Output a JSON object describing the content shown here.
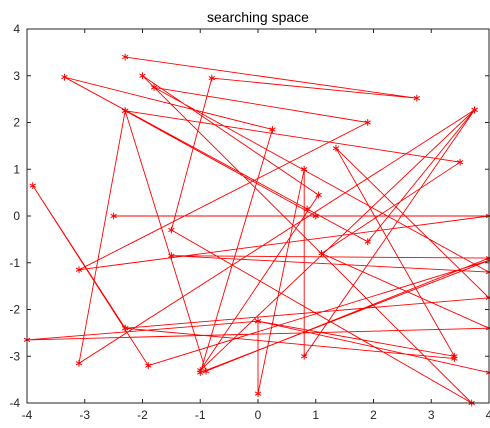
{
  "chart_data": {
    "type": "line",
    "title": "searching space",
    "xlabel": "",
    "ylabel": "",
    "xlim": [
      -4,
      4
    ],
    "ylim": [
      -4,
      4
    ],
    "xticks": [
      "-4",
      "-3",
      "-2",
      "-1",
      "0",
      "1",
      "2",
      "3",
      "4"
    ],
    "yticks": [
      "-4",
      "-3",
      "-2",
      "-1",
      "0",
      "1",
      "2",
      "3",
      "4"
    ],
    "grid": false,
    "marker": "asterisk",
    "color": "#ff0000",
    "series": [
      {
        "points": [
          [
            -2.3,
            3.4
          ],
          [
            2.75,
            2.52
          ],
          [
            -0.8,
            2.95
          ],
          [
            -1.5,
            -0.3
          ],
          [
            3.7,
            -4.0
          ],
          [
            -2.0,
            3.0
          ],
          [
            1.05,
            0.45
          ],
          [
            -1.0,
            -3.3
          ],
          [
            3.75,
            2.27
          ],
          [
            -3.1,
            -3.15
          ],
          [
            -2.3,
            2.25
          ],
          [
            -0.9,
            -3.32
          ],
          [
            4.0,
            -0.9
          ],
          [
            -1.5,
            -0.85
          ],
          [
            4.0,
            -1.2
          ],
          [
            -1.8,
            2.75
          ],
          [
            1.9,
            2.0
          ],
          [
            -3.1,
            -1.15
          ],
          [
            4.0,
            0.0
          ],
          [
            -2.5,
            0.0
          ],
          [
            1.0,
            0.0
          ],
          [
            -2.3,
            2.25
          ],
          [
            3.5,
            1.15
          ],
          [
            1.1,
            -0.8
          ],
          [
            4.0,
            -2.4
          ],
          [
            -4.0,
            -2.65
          ],
          [
            0.0,
            -2.25
          ],
          [
            3.4,
            -3.0
          ],
          [
            1.35,
            1.45
          ],
          [
            4.0,
            -1.75
          ],
          [
            -2.3,
            -2.4
          ],
          [
            3.4,
            -3.05
          ],
          [
            -2.3,
            -2.4
          ],
          [
            -3.9,
            0.65
          ],
          [
            -1.9,
            -3.2
          ],
          [
            4.0,
            -0.95
          ],
          [
            -1.0,
            -3.35
          ],
          [
            0.25,
            1.85
          ],
          [
            -3.35,
            2.97
          ],
          [
            0.85,
            0.15
          ],
          [
            1.9,
            -0.55
          ],
          [
            3.75,
            2.27
          ],
          [
            0.8,
            -3.0
          ],
          [
            0.8,
            1.0
          ],
          [
            0.0,
            -3.8
          ],
          [
            0.0,
            -2.25
          ],
          [
            4.0,
            -3.35
          ]
        ]
      }
    ]
  }
}
